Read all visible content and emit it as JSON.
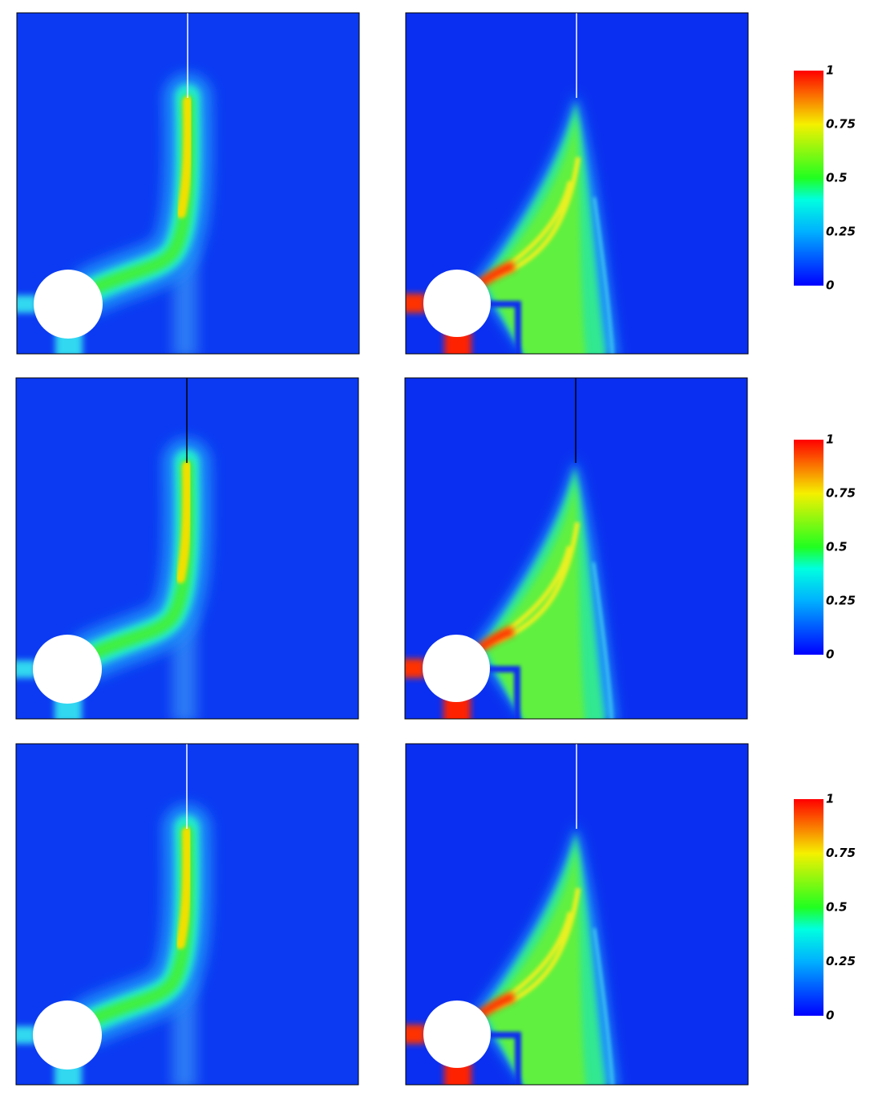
{
  "colorbars": [
    {
      "ticks": [
        0,
        0.25,
        0.5,
        0.75,
        1
      ]
    },
    {
      "ticks": [
        0,
        0.25,
        0.5,
        0.75,
        1
      ]
    },
    {
      "ticks": [
        0,
        0.25,
        0.5,
        0.75,
        1
      ]
    }
  ]
}
